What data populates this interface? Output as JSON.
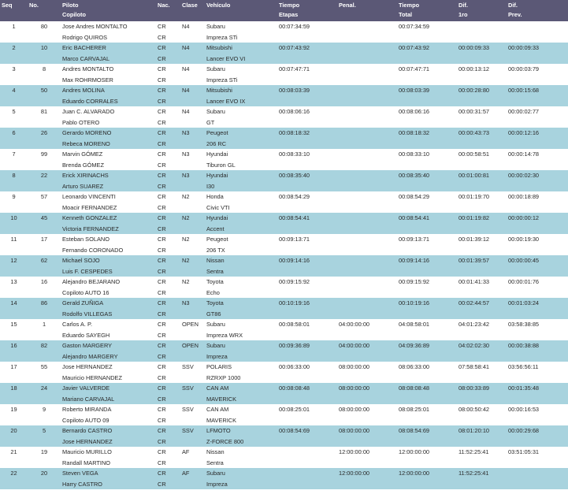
{
  "headers": {
    "seq": "Seq",
    "no": "No.",
    "piloto": "Piloto",
    "copiloto": "Copiloto",
    "nac": "Nac.",
    "clase": "Clase",
    "vehiculo": "Vehículo",
    "tiempo_etapas_1": "Tiempo",
    "tiempo_etapas_2": "Etapas",
    "penal": "Penal.",
    "tiempo_total_1": "Tiempo",
    "tiempo_total_2": "Total",
    "dif1ro_1": "Dif.",
    "dif1ro_2": "1ro",
    "difprev_1": "Dif.",
    "difprev_2": "Prev."
  },
  "entries": [
    {
      "seq": "1",
      "no": "80",
      "piloto": "Jose Andres MONTALTO",
      "copiloto": "Rodrigo QUIROS",
      "nac1": "CR",
      "nac2": "CR",
      "clase": "N4",
      "veh1": "Subaru",
      "veh2": "Impreza STi",
      "etapas": "00:07:34:59",
      "penal": "",
      "total": "00:07:34:59",
      "dif1ro": "",
      "difprev": ""
    },
    {
      "seq": "2",
      "no": "10",
      "piloto": "Eric BACHERER",
      "copiloto": "Marco CARVAJAL",
      "nac1": "CR",
      "nac2": "CR",
      "clase": "N4",
      "veh1": "Mitsubishi",
      "veh2": "Lancer EVO VI",
      "etapas": "00:07:43:92",
      "penal": "",
      "total": "00:07:43:92",
      "dif1ro": "00:00:09:33",
      "difprev": "00:00:09:33"
    },
    {
      "seq": "3",
      "no": "8",
      "piloto": "Andres MONTALTO",
      "copiloto": "Max ROHRMOSER",
      "nac1": "CR",
      "nac2": "CR",
      "clase": "N4",
      "veh1": "Subaru",
      "veh2": "Impreza STi",
      "etapas": "00:07:47:71",
      "penal": "",
      "total": "00:07:47:71",
      "dif1ro": "00:00:13:12",
      "difprev": "00:00:03:79"
    },
    {
      "seq": "4",
      "no": "50",
      "piloto": "Andres MOLINA",
      "copiloto": "Eduardo CORRALES",
      "nac1": "CR",
      "nac2": "CR",
      "clase": "N4",
      "veh1": "Mitsubishi",
      "veh2": "Lancer EVO IX",
      "etapas": "00:08:03:39",
      "penal": "",
      "total": "00:08:03:39",
      "dif1ro": "00:00:28:80",
      "difprev": "00:00:15:68"
    },
    {
      "seq": "5",
      "no": "81",
      "piloto": "Juan C. ALVARADO",
      "copiloto": "Pablo OTERO",
      "nac1": "CR",
      "nac2": "CR",
      "clase": "N4",
      "veh1": "Subaru",
      "veh2": "GT",
      "etapas": "00:08:06:16",
      "penal": "",
      "total": "00:08:06:16",
      "dif1ro": "00:00:31:57",
      "difprev": "00:00:02:77"
    },
    {
      "seq": "6",
      "no": "26",
      "piloto": "Gerardo MORENO",
      "copiloto": "Rebeca MORENO",
      "nac1": "CR",
      "nac2": "CR",
      "clase": "N3",
      "veh1": "Peugeot",
      "veh2": "206 RC",
      "etapas": "00:08:18:32",
      "penal": "",
      "total": "00:08:18:32",
      "dif1ro": "00:00:43:73",
      "difprev": "00:00:12:16"
    },
    {
      "seq": "7",
      "no": "99",
      "piloto": "Marvin GÓMEZ",
      "copiloto": "Brenda GÓMEZ",
      "nac1": "CR",
      "nac2": "CR",
      "clase": "N3",
      "veh1": "Hyundai",
      "veh2": "Tiburon GL",
      "etapas": "00:08:33:10",
      "penal": "",
      "total": "00:08:33:10",
      "dif1ro": "00:00:58:51",
      "difprev": "00:00:14:78"
    },
    {
      "seq": "8",
      "no": "22",
      "piloto": "Erick XIRINACHS",
      "copiloto": "Arturo SUAREZ",
      "nac1": "CR",
      "nac2": "CR",
      "clase": "N3",
      "veh1": "Hyundai",
      "veh2": "I30",
      "etapas": "00:08:35:40",
      "penal": "",
      "total": "00:08:35:40",
      "dif1ro": "00:01:00:81",
      "difprev": "00:00:02:30"
    },
    {
      "seq": "9",
      "no": "57",
      "piloto": "Leonardo VINCENTI",
      "copiloto": "Moacir FERNANDEZ",
      "nac1": "CR",
      "nac2": "CR",
      "clase": "N2",
      "veh1": "Honda",
      "veh2": "Civic VTI",
      "etapas": "00:08:54:29",
      "penal": "",
      "total": "00:08:54:29",
      "dif1ro": "00:01:19:70",
      "difprev": "00:00:18:89"
    },
    {
      "seq": "10",
      "no": "45",
      "piloto": "Kenneth GONZALEZ",
      "copiloto": "Victoria FERNANDEZ",
      "nac1": "CR",
      "nac2": "CR",
      "clase": "N2",
      "veh1": "Hyundai",
      "veh2": "Accent",
      "etapas": "00:08:54:41",
      "penal": "",
      "total": "00:08:54:41",
      "dif1ro": "00:01:19:82",
      "difprev": "00:00:00:12"
    },
    {
      "seq": "11",
      "no": "17",
      "piloto": "Esteban SOLANO",
      "copiloto": "Fernando CORONADO",
      "nac1": "CR",
      "nac2": "CR",
      "clase": "N2",
      "veh1": "Peugeot",
      "veh2": "206 TX",
      "etapas": "00:09:13:71",
      "penal": "",
      "total": "00:09:13:71",
      "dif1ro": "00:01:39:12",
      "difprev": "00:00:19:30"
    },
    {
      "seq": "12",
      "no": "62",
      "piloto": "Michael SOJO",
      "copiloto": "Luis F. CESPEDES",
      "nac1": "CR",
      "nac2": "CR",
      "clase": "N2",
      "veh1": "Nissan",
      "veh2": "Sentra",
      "etapas": "00:09:14:16",
      "penal": "",
      "total": "00:09:14:16",
      "dif1ro": "00:01:39:57",
      "difprev": "00:00:00:45"
    },
    {
      "seq": "13",
      "no": "16",
      "piloto": "Alejandro BEJARANO",
      "copiloto": "Copiloto AUTO 16",
      "nac1": "CR",
      "nac2": "CR",
      "clase": "N2",
      "veh1": "Toyota",
      "veh2": "Echo",
      "etapas": "00:09:15:92",
      "penal": "",
      "total": "00:09:15:92",
      "dif1ro": "00:01:41:33",
      "difprev": "00:00:01:76"
    },
    {
      "seq": "14",
      "no": "86",
      "piloto": "Gerald ZUÑIGA",
      "copiloto": "Rodolfo VILLEGAS",
      "nac1": "CR",
      "nac2": "CR",
      "clase": "N3",
      "veh1": "Toyota",
      "veh2": "GT86",
      "etapas": "00:10:19:16",
      "penal": "",
      "total": "00:10:19:16",
      "dif1ro": "00:02:44:57",
      "difprev": "00:01:03:24"
    },
    {
      "seq": "15",
      "no": "1",
      "piloto": "Carlos A. P.",
      "copiloto": "Eduardo SAYEGH",
      "nac1": "CR",
      "nac2": "CR",
      "clase": "OPEN",
      "veh1": "Subaru",
      "veh2": "Impreza WRX",
      "etapas": "00:08:58:01",
      "penal": "04:00:00:00",
      "total": "04:08:58:01",
      "dif1ro": "04:01:23:42",
      "difprev": "03:58:38:85"
    },
    {
      "seq": "16",
      "no": "82",
      "piloto": "Gaston MARGERY",
      "copiloto": "Alejandro MARGERY",
      "nac1": "CR",
      "nac2": "CR",
      "clase": "OPEN",
      "veh1": "Subaru",
      "veh2": "Impreza",
      "etapas": "00:09:36:89",
      "penal": "04:00:00:00",
      "total": "04:09:36:89",
      "dif1ro": "04:02:02:30",
      "difprev": "00:00:38:88"
    },
    {
      "seq": "17",
      "no": "55",
      "piloto": "Jose HERNANDEZ",
      "copiloto": "Mauricio HERNANDEZ",
      "nac1": "CR",
      "nac2": "CR",
      "clase": "SSV",
      "veh1": "POLARIS",
      "veh2": "RZRXP 1000",
      "etapas": "00:06:33:00",
      "penal": "08:00:00:00",
      "total": "08:06:33:00",
      "dif1ro": "07:58:58:41",
      "difprev": "03:56:56:11"
    },
    {
      "seq": "18",
      "no": "24",
      "piloto": "Javier VALVERDE",
      "copiloto": "Mariano CARVAJAL",
      "nac1": "CR",
      "nac2": "CR",
      "clase": "SSV",
      "veh1": "CAN AM",
      "veh2": "MAVERICK",
      "etapas": "00:08:08:48",
      "penal": "08:00:00:00",
      "total": "08:08:08:48",
      "dif1ro": "08:00:33:89",
      "difprev": "00:01:35:48"
    },
    {
      "seq": "19",
      "no": "9",
      "piloto": "Roberto MIRANDA",
      "copiloto": "Copiloto AUTO 09",
      "nac1": "CR",
      "nac2": "CR",
      "clase": "SSV",
      "veh1": "CAN AM",
      "veh2": "MAVERICK",
      "etapas": "00:08:25:01",
      "penal": "08:00:00:00",
      "total": "08:08:25:01",
      "dif1ro": "08:00:50:42",
      "difprev": "00:00:16:53"
    },
    {
      "seq": "20",
      "no": "5",
      "piloto": "Bernardo CASTRO",
      "copiloto": "Jose HERNANDEZ",
      "nac1": "CR",
      "nac2": "CR",
      "clase": "SSV",
      "veh1": "LFMOTO",
      "veh2": "Z-FORCE 800",
      "etapas": "00:08:54:69",
      "penal": "08:00:00:00",
      "total": "08:08:54:69",
      "dif1ro": "08:01:20:10",
      "difprev": "00:00:29:68"
    },
    {
      "seq": "21",
      "no": "19",
      "piloto": "Mauricio MURILLO",
      "copiloto": "Randall MARTINO",
      "nac1": "CR",
      "nac2": "CR",
      "clase": "AF",
      "veh1": "Nissan",
      "veh2": "Sentra",
      "etapas": "",
      "penal": "12:00:00:00",
      "total": "12:00:00:00",
      "dif1ro": "11:52:25:41",
      "difprev": "03:51:05:31"
    },
    {
      "seq": "22",
      "no": "20",
      "piloto": "Steven VEGA",
      "copiloto": "Harry CASTRO",
      "nac1": "CR",
      "nac2": "CR",
      "clase": "AF",
      "veh1": "Subaru",
      "veh2": "Impreza",
      "etapas": "",
      "penal": "12:00:00:00",
      "total": "12:00:00:00",
      "dif1ro": "11:52:25:41",
      "difprev": ""
    }
  ]
}
